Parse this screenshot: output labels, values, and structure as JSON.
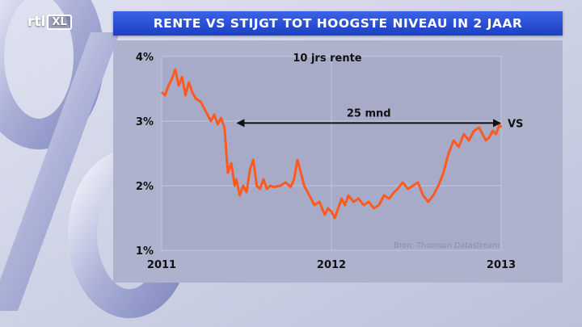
{
  "broadcaster": {
    "logo_main": "rtl",
    "logo_box": "XL"
  },
  "headline": "RENTE VS STIJGT TOT HOOGSTE NIVEAU IN 2 JAAR",
  "colors": {
    "title_bar": "#2448d6",
    "chart_bg": "#aeb2cd",
    "line": "#ff5a1e",
    "text": "#111111"
  },
  "chart_data": {
    "type": "line",
    "title": "10 jrs rente",
    "xlabel": "",
    "ylabel": "",
    "ylim": [
      1,
      4
    ],
    "yticks": [
      {
        "value": 4,
        "label": "4%"
      },
      {
        "value": 3,
        "label": "3%"
      },
      {
        "value": 2,
        "label": "2%"
      },
      {
        "value": 1,
        "label": "1%"
      }
    ],
    "xlim": [
      2011.0,
      2013.0
    ],
    "xticks": [
      {
        "value": 2011.0,
        "label": "2011"
      },
      {
        "value": 2012.0,
        "label": "2012"
      },
      {
        "value": 2013.0,
        "label": "2013"
      }
    ],
    "grid": true,
    "source": "Bron: Thomson Datastream",
    "series": [
      {
        "x": [
          2011.0,
          2011.02,
          2011.04,
          2011.06,
          2011.08,
          2011.1,
          2011.12,
          2011.14,
          2011.16,
          2011.18,
          2011.2,
          2011.23,
          2011.26,
          2011.29,
          2011.31,
          2011.33,
          2011.35,
          2011.37,
          2011.39,
          2011.41,
          2011.43,
          2011.44,
          2011.46,
          2011.48,
          2011.5,
          2011.52,
          2011.54,
          2011.56,
          2011.58,
          2011.6,
          2011.62,
          2011.64,
          2011.66,
          2011.7,
          2011.73,
          2011.76,
          2011.78,
          2011.8,
          2011.82,
          2011.84,
          2011.86,
          2011.88,
          2011.9,
          2011.93,
          2011.96,
          2011.98,
          2012.0,
          2012.02,
          2012.04,
          2012.06,
          2012.08,
          2012.1,
          2012.13,
          2012.16,
          2012.19,
          2012.22,
          2012.25,
          2012.28,
          2012.31,
          2012.34,
          2012.37,
          2012.39,
          2012.42,
          2012.45,
          2012.48,
          2012.51,
          2012.54,
          2012.57,
          2012.6,
          2012.63,
          2012.66,
          2012.69,
          2012.72,
          2012.75,
          2012.78,
          2012.81,
          2012.84,
          2012.87,
          2012.89,
          2012.91,
          2012.93,
          2012.95,
          2012.97,
          2012.99,
          2013.0
        ],
        "y": [
          3.45,
          3.4,
          3.55,
          3.65,
          3.8,
          3.55,
          3.68,
          3.4,
          3.6,
          3.45,
          3.35,
          3.3,
          3.15,
          3.0,
          3.1,
          2.95,
          3.05,
          2.9,
          2.2,
          2.35,
          2.0,
          2.1,
          1.85,
          2.0,
          1.9,
          2.25,
          2.4,
          2.0,
          1.95,
          2.1,
          1.95,
          2.0,
          1.98,
          2.0,
          2.05,
          1.98,
          2.1,
          2.4,
          2.2,
          2.0,
          1.9,
          1.8,
          1.7,
          1.75,
          1.55,
          1.65,
          1.6,
          1.5,
          1.65,
          1.8,
          1.7,
          1.85,
          1.75,
          1.8,
          1.7,
          1.75,
          1.65,
          1.7,
          1.85,
          1.8,
          1.9,
          1.95,
          2.05,
          1.95,
          2.0,
          2.05,
          1.85,
          1.75,
          1.85,
          2.0,
          2.2,
          2.5,
          2.7,
          2.6,
          2.8,
          2.7,
          2.85,
          2.9,
          2.8,
          2.7,
          2.75,
          2.85,
          2.8,
          2.95,
          2.9
        ]
      }
    ],
    "annotation": {
      "label": "25 mnd",
      "x_start": 2011.44,
      "x_end": 2013.0,
      "y": 2.97,
      "end_label": "VS"
    }
  }
}
